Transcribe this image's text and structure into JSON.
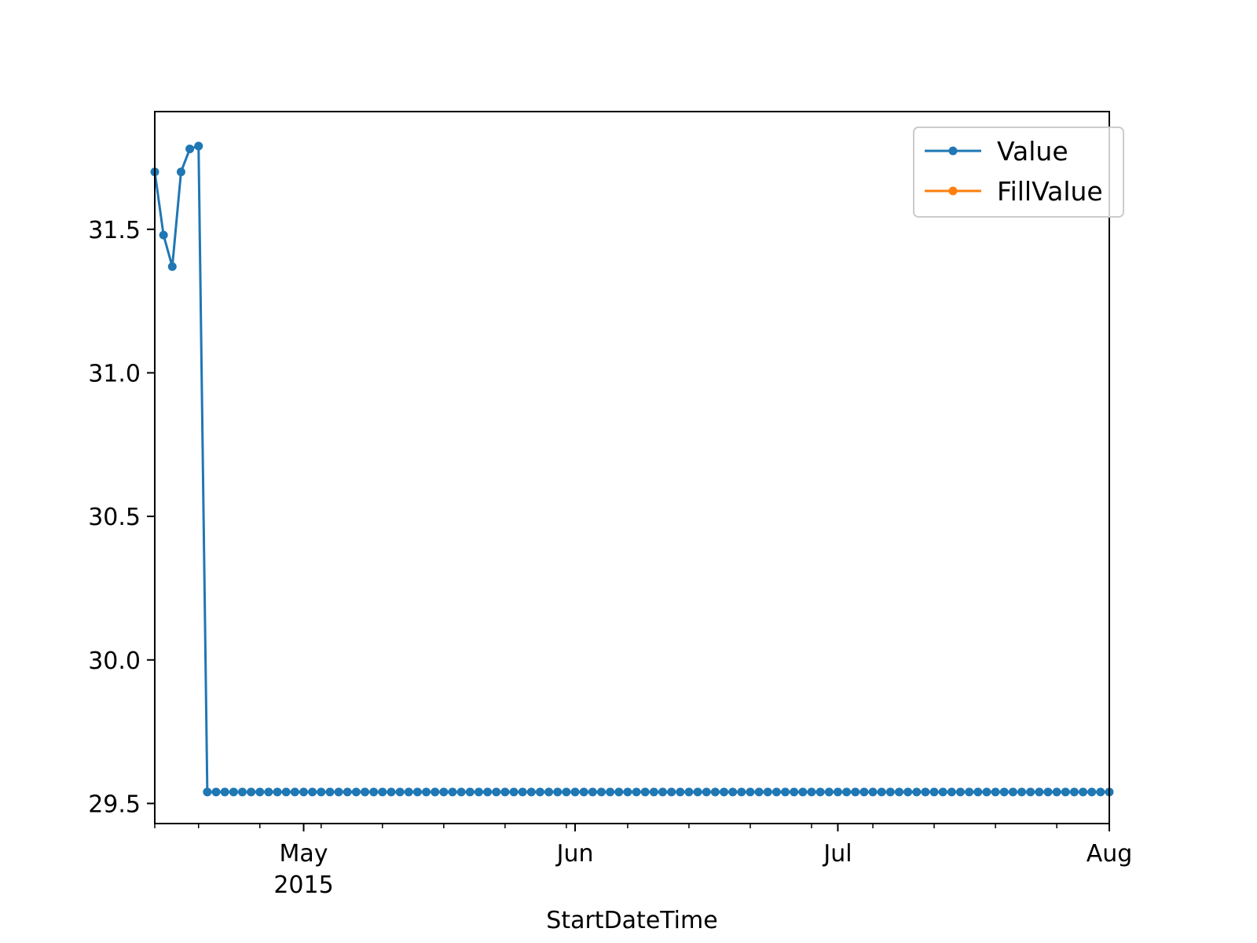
{
  "chart_data": {
    "type": "line",
    "xlabel": "StartDateTime",
    "ylabel": "",
    "x_ticks": [
      {
        "date": "2015-05-01",
        "label": "May",
        "sublabel": "2015"
      },
      {
        "date": "2015-06-01",
        "label": "Jun",
        "sublabel": ""
      },
      {
        "date": "2015-07-01",
        "label": "Jul",
        "sublabel": ""
      },
      {
        "date": "2015-08-01",
        "label": "Aug",
        "sublabel": ""
      }
    ],
    "xlim": [
      "2015-04-14",
      "2015-08-01"
    ],
    "y_ticks": [
      {
        "value": 29.5,
        "label": "29.5"
      },
      {
        "value": 30.0,
        "label": "30.0"
      },
      {
        "value": 30.5,
        "label": "30.5"
      },
      {
        "value": 31.0,
        "label": "31.0"
      },
      {
        "value": 31.5,
        "label": "31.5"
      }
    ],
    "ylim": [
      29.43,
      31.91
    ],
    "grid": false,
    "legend": "upper right",
    "series": [
      {
        "name": "Value",
        "color": "#1f77b4",
        "marker": "circle",
        "points": [
          {
            "x": "2015-04-14",
            "y": 31.7
          },
          {
            "x": "2015-04-15",
            "y": 31.48
          },
          {
            "x": "2015-04-16",
            "y": 31.37
          },
          {
            "x": "2015-04-17",
            "y": 31.7
          },
          {
            "x": "2015-04-18",
            "y": 31.78
          },
          {
            "x": "2015-04-19",
            "y": 31.79
          },
          {
            "x": "2015-04-20",
            "y": 29.54
          }
        ],
        "constant_tail": {
          "from": "2015-04-21",
          "to": "2015-08-01",
          "y": 29.54
        }
      },
      {
        "name": "FillValue",
        "color": "#ff7f0e",
        "marker": "circle",
        "points": []
      }
    ]
  }
}
